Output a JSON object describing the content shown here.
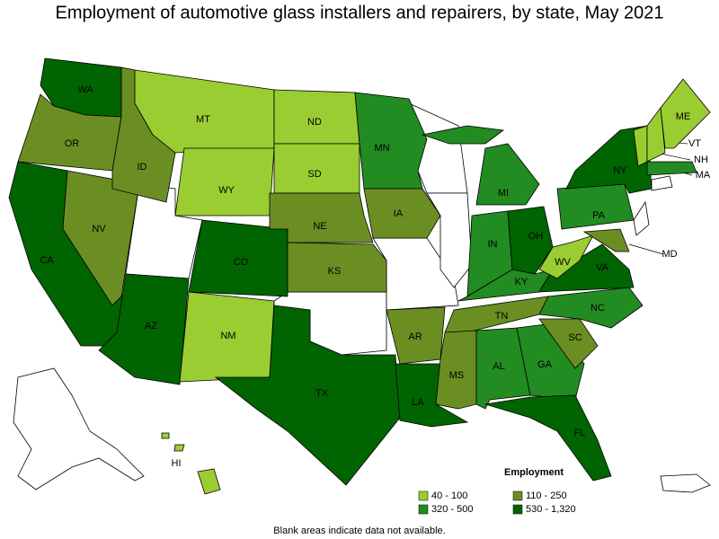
{
  "title": "Employment of automotive glass installers and repairers, by state, May 2021",
  "states": [
    {
      "label": "WA",
      "color": "#006400"
    },
    {
      "label": "OR",
      "color": "#6b8e23"
    },
    {
      "label": "CA",
      "color": "#006400"
    },
    {
      "label": "NV",
      "color": "#6b8e23"
    },
    {
      "label": "ID",
      "color": "#6b8e23"
    },
    {
      "label": "MT",
      "color": "#9acd32"
    },
    {
      "label": "WY",
      "color": "#9acd32"
    },
    {
      "label": "CO",
      "color": "#006400"
    },
    {
      "label": "AZ",
      "color": "#006400"
    },
    {
      "label": "NM",
      "color": "#9acd32"
    },
    {
      "label": "ND",
      "color": "#9acd32"
    },
    {
      "label": "SD",
      "color": "#9acd32"
    },
    {
      "label": "NE",
      "color": "#6b8e23"
    },
    {
      "label": "KS",
      "color": "#6b8e23"
    },
    {
      "label": "TX",
      "color": "#006400"
    },
    {
      "label": "MN",
      "color": "#228b22"
    },
    {
      "label": "IA",
      "color": "#6b8e23"
    },
    {
      "label": "AR",
      "color": "#6b8e23"
    },
    {
      "label": "LA",
      "color": "#006400"
    },
    {
      "label": "MI",
      "color": "#228b22"
    },
    {
      "label": "IN",
      "color": "#228b22"
    },
    {
      "label": "OH",
      "color": "#006400"
    },
    {
      "label": "KY",
      "color": "#228b22"
    },
    {
      "label": "TN",
      "color": "#6b8e23"
    },
    {
      "label": "MS",
      "color": "#6b8e23"
    },
    {
      "label": "AL",
      "color": "#228b22"
    },
    {
      "label": "GA",
      "color": "#228b22"
    },
    {
      "label": "FL",
      "color": "#006400"
    },
    {
      "label": "SC",
      "color": "#6b8e23"
    },
    {
      "label": "NC",
      "color": "#228b22"
    },
    {
      "label": "VA",
      "color": "#006400"
    },
    {
      "label": "WV",
      "color": "#9acd32"
    },
    {
      "label": "MD",
      "color": "#6b8e23"
    },
    {
      "label": "PA",
      "color": "#228b22"
    },
    {
      "label": "NY",
      "color": "#006400"
    },
    {
      "label": "VT",
      "color": "#9acd32"
    },
    {
      "label": "NH",
      "color": "#9acd32"
    },
    {
      "label": "ME",
      "color": "#9acd32"
    },
    {
      "label": "MA",
      "color": "#228b22"
    },
    {
      "label": "HI",
      "color": "#9acd32"
    }
  ],
  "legend": {
    "title": "Employment",
    "items": [
      {
        "label": "40 - 100",
        "color": "#9acd32"
      },
      {
        "label": "110 - 250",
        "color": "#6b8e23"
      },
      {
        "label": "320 - 500",
        "color": "#228b22"
      },
      {
        "label": "530 - 1,320",
        "color": "#006400"
      }
    ]
  },
  "footnote": "Blank areas indicate data not available."
}
